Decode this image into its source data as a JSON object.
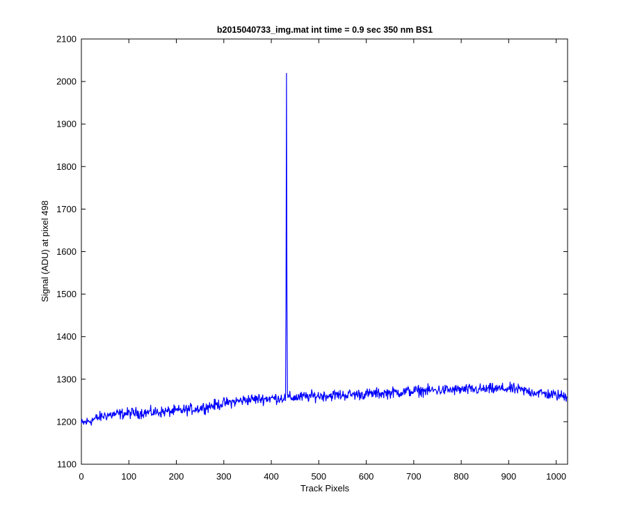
{
  "chart_data": {
    "type": "line",
    "title": "b2015040733_img.mat int time = 0.9 sec  350 nm BS1",
    "xlabel": "Track Pixels",
    "ylabel": "Signal (ADU) at pixel 498",
    "xlim": [
      0,
      1024
    ],
    "ylim": [
      1100,
      2100
    ],
    "xticks": [
      0,
      100,
      200,
      300,
      400,
      500,
      600,
      700,
      800,
      900,
      1000
    ],
    "yticks": [
      1100,
      1200,
      1300,
      1400,
      1500,
      1600,
      1700,
      1800,
      1900,
      2000,
      2100
    ],
    "grid": false,
    "series_color": "#0000ff",
    "series": [
      {
        "n_points": 1024,
        "trend": [
          [
            0,
            1195
          ],
          [
            50,
            1215
          ],
          [
            100,
            1220
          ],
          [
            150,
            1222
          ],
          [
            200,
            1225
          ],
          [
            250,
            1232
          ],
          [
            300,
            1243
          ],
          [
            350,
            1252
          ],
          [
            400,
            1255
          ],
          [
            450,
            1257
          ],
          [
            500,
            1261
          ],
          [
            550,
            1263
          ],
          [
            600,
            1265
          ],
          [
            650,
            1268
          ],
          [
            700,
            1272
          ],
          [
            750,
            1274
          ],
          [
            800,
            1275
          ],
          [
            850,
            1276
          ],
          [
            900,
            1278
          ],
          [
            950,
            1270
          ],
          [
            1000,
            1262
          ],
          [
            1024,
            1260
          ]
        ],
        "noise_amplitude": 12,
        "spikes": [
          {
            "x": 431,
            "y": 1500
          },
          {
            "x": 432,
            "y": 2020
          },
          {
            "x": 433,
            "y": 1480
          }
        ]
      }
    ]
  }
}
